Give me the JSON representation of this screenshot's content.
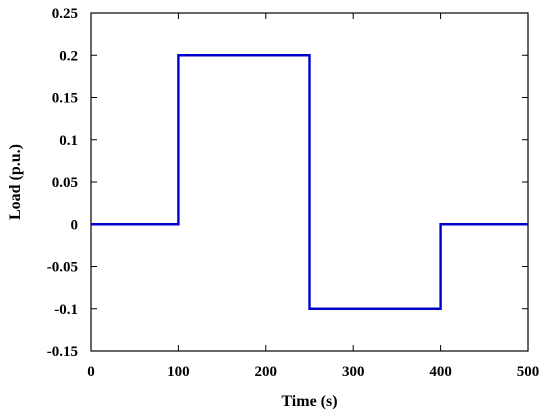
{
  "chart_data": {
    "type": "line",
    "title": "",
    "xlabel": "Time (s)",
    "ylabel": "Load (p.u.)",
    "xlim": [
      0,
      500
    ],
    "ylim": [
      -0.15,
      0.25
    ],
    "x_ticks": [
      "0",
      "100",
      "200",
      "300",
      "400",
      "500"
    ],
    "y_ticks": [
      "0.25",
      "0.2",
      "0.15",
      "0.1",
      "0.05",
      "0",
      "-0.05",
      "-0.1",
      "-0.15"
    ],
    "grid": false,
    "series": [
      {
        "color": "#0000cc",
        "x": [
          0,
          100,
          100,
          250,
          250,
          400,
          400,
          500
        ],
        "y": [
          0,
          0,
          0.2,
          0.2,
          -0.1,
          -0.1,
          0,
          0
        ]
      }
    ]
  }
}
